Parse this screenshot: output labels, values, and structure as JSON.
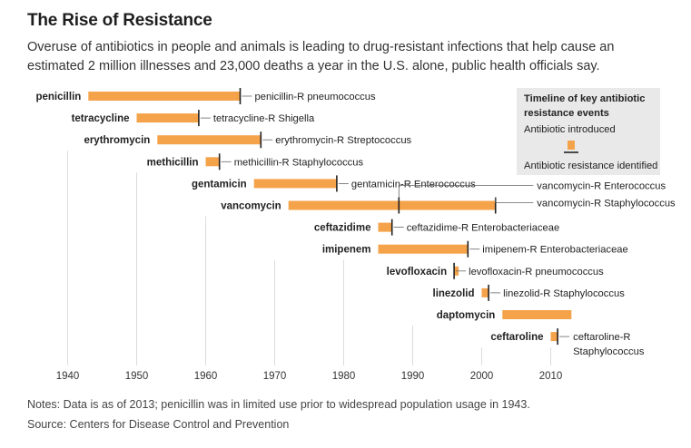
{
  "title": "The Rise of Resistance",
  "subtitle": "Overuse of antibiotics in people and animals is leading to drug-resistant infections that help cause an estimated 2 million illnesses and 23,000 deaths a year in the U.S. alone, public health officials say.",
  "notes": "Notes: Data is as of 2013; penicillin was in limited use prior to widespread population usage in 1943.",
  "source": "Source: Centers for Disease Control and Prevention",
  "legend": {
    "title_line1": "Timeline of key antibiotic",
    "title_line2": "resistance events",
    "introduced": "Antibiotic introduced",
    "resistance": "Antibiotic resistance identified"
  },
  "colors": {
    "bar": "#f5a34a",
    "tick": "#222222",
    "grid": "#dcdcdc",
    "legend_bg": "#e9e9e9"
  },
  "chart_data": {
    "type": "bar",
    "orientation": "horizontal-timeline",
    "x_ticks": [
      1940,
      1950,
      1960,
      1970,
      1980,
      1990,
      2000,
      2010
    ],
    "xlim": [
      1940,
      2013
    ],
    "grid": true,
    "legend_position": "top-right",
    "series": [
      {
        "antibiotic": "penicillin",
        "introduced": 1943,
        "resistance": [
          {
            "year": 1965,
            "label": "penicillin-R pneumococcus"
          }
        ]
      },
      {
        "antibiotic": "tetracycline",
        "introduced": 1950,
        "resistance": [
          {
            "year": 1959,
            "label": "tetracycline-R Shigella"
          }
        ]
      },
      {
        "antibiotic": "erythromycin",
        "introduced": 1953,
        "resistance": [
          {
            "year": 1968,
            "label": "erythromycin-R Streptococcus"
          }
        ]
      },
      {
        "antibiotic": "methicillin",
        "introduced": 1960,
        "resistance": [
          {
            "year": 1962,
            "label": "methicillin-R Staphylococcus"
          }
        ]
      },
      {
        "antibiotic": "gentamicin",
        "introduced": 1967,
        "resistance": [
          {
            "year": 1979,
            "label": "gentamicin-R Enterococcus"
          }
        ]
      },
      {
        "antibiotic": "vancomycin",
        "introduced": 1972,
        "resistance": [
          {
            "year": 1988,
            "label": "vancomycin-R Enterococcus"
          },
          {
            "year": 2002,
            "label": "vancomycin-R Staphylococcus"
          }
        ]
      },
      {
        "antibiotic": "ceftazidime",
        "introduced": 1985,
        "resistance": [
          {
            "year": 1987,
            "label": "ceftazidime-R Enterobacteriaceae"
          }
        ]
      },
      {
        "antibiotic": "imipenem",
        "introduced": 1985,
        "resistance": [
          {
            "year": 1998,
            "label": "imipenem-R Enterobacteriaceae"
          }
        ]
      },
      {
        "antibiotic": "levofloxacin",
        "introduced": 1996,
        "resistance": [
          {
            "year": 1996,
            "label": "levofloxacin-R pneumococcus"
          }
        ]
      },
      {
        "antibiotic": "linezolid",
        "introduced": 2000,
        "resistance": [
          {
            "year": 2001,
            "label": "linezolid-R Staphylococcus"
          }
        ]
      },
      {
        "antibiotic": "daptomycin",
        "introduced": 2003,
        "resistance": []
      },
      {
        "antibiotic": "ceftaroline",
        "introduced": 2010,
        "resistance": [
          {
            "year": 2011,
            "label": "ceftaroline-R Staphylococcus"
          }
        ]
      }
    ]
  }
}
